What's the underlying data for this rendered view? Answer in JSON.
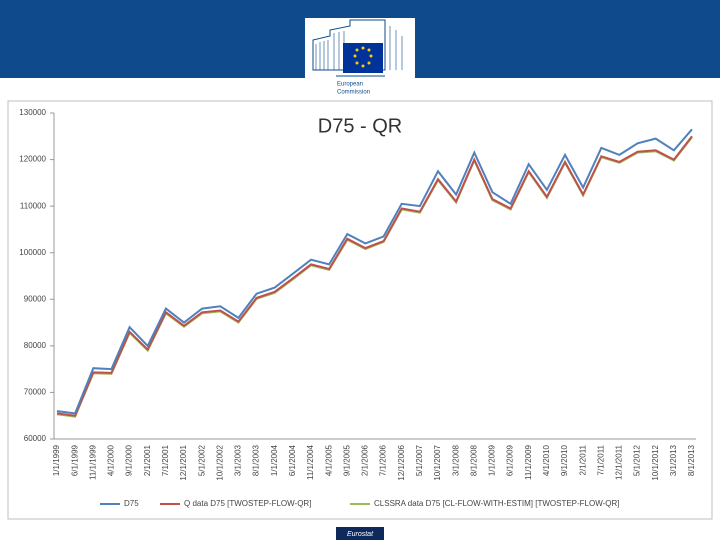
{
  "header": {
    "logo_lines": [
      "European",
      "Commission"
    ]
  },
  "chart_data": {
    "type": "line",
    "title": "D75 - QR",
    "categories": [
      "1/1/1999",
      "6/1/1999",
      "11/1/1999",
      "4/1/2000",
      "9/1/2000",
      "2/1/2001",
      "7/1/2001",
      "12/1/2001",
      "5/1/2002",
      "10/1/2002",
      "3/1/2003",
      "8/1/2003",
      "1/1/2004",
      "6/1/2004",
      "11/1/2004",
      "4/1/2005",
      "9/1/2005",
      "2/1/2006",
      "7/1/2006",
      "12/1/2006",
      "5/1/2007",
      "10/1/2007",
      "3/1/2008",
      "8/1/2008",
      "1/1/2009",
      "6/1/2009",
      "11/1/2009",
      "4/1/2010",
      "9/1/2010",
      "2/1/2011",
      "7/1/2011",
      "12/1/2011",
      "5/1/2012",
      "10/1/2012",
      "3/1/2013",
      "8/1/2013"
    ],
    "series": [
      {
        "name": "D75",
        "color": "#4f81bd",
        "values": [
          66000,
          65500,
          75200,
          75000,
          84000,
          80000,
          88000,
          85000,
          88000,
          88500,
          86000,
          91200,
          92500,
          95500,
          98500,
          97500,
          104000,
          102000,
          103500,
          110500,
          110000,
          117500,
          112500,
          121500,
          113000,
          110500,
          119000,
          113500,
          121000,
          114000,
          122500,
          121000,
          123500,
          124500,
          122000,
          126500
        ]
      },
      {
        "name": "Q data D75 [TWOSTEP-FLOW-QR]",
        "color": "#c0504d",
        "values": [
          65500,
          65000,
          74300,
          74200,
          83000,
          79200,
          87200,
          84300,
          87200,
          87600,
          85200,
          90300,
          91600,
          94500,
          97500,
          96500,
          103000,
          101000,
          102500,
          109500,
          108800,
          115800,
          111000,
          120000,
          111500,
          109500,
          117500,
          112000,
          119500,
          112500,
          120700,
          119500,
          121700,
          122000,
          120000,
          125000
        ]
      },
      {
        "name": "CLSSRA data D75 [CL-FLOW-WITH-ESTIM] [TWOSTEP-FLOW-QR]",
        "color": "#9bbb59",
        "values": [
          65300,
          64800,
          74100,
          74000,
          82800,
          79000,
          87000,
          84100,
          87000,
          87400,
          85000,
          90100,
          91400,
          94300,
          97300,
          96300,
          102800,
          100800,
          102300,
          109300,
          108600,
          115600,
          110800,
          119800,
          111300,
          109300,
          117300,
          111800,
          119300,
          112300,
          120500,
          119300,
          121500,
          121800,
          119800,
          124800
        ]
      }
    ],
    "ylim": [
      60000,
      130000
    ],
    "yticks": [
      60000,
      70000,
      80000,
      90000,
      100000,
      110000,
      120000,
      130000
    ],
    "grid": false,
    "legend": "bottom"
  },
  "footer": {
    "text": "Eurostat"
  }
}
